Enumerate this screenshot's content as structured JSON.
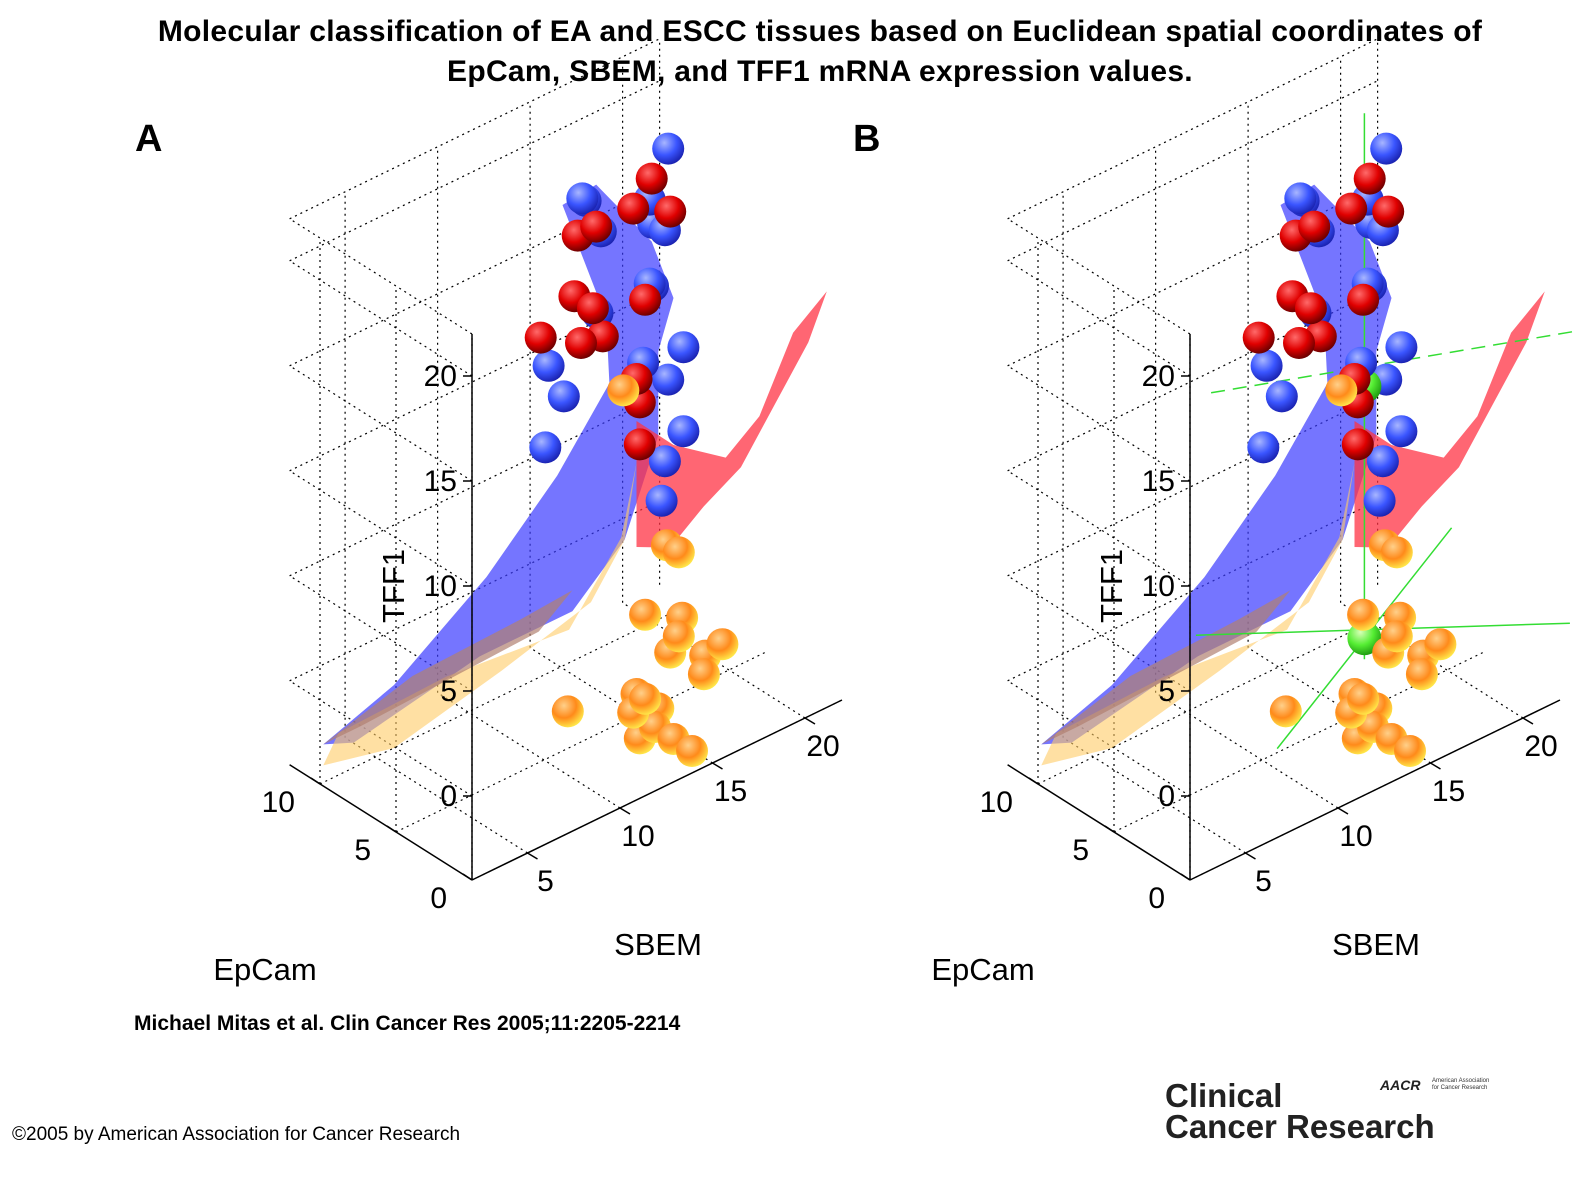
{
  "figure": {
    "title_line1": "Molecular classification of EA and ESCC tissues based on Euclidean spatial coordinates of",
    "title_line2": "EpCam, SBEM, and TFF1 mRNA expression values.",
    "citation": "Michael Mitas et al. Clin Cancer Res 2005;11:2205-2214",
    "copyright": "©2005 by American Association for Cancer Research",
    "journal_line1": "Clinical",
    "journal_line2": "Cancer Research",
    "publisher_mark": "AACR",
    "publisher_sub_line1": "American Association",
    "publisher_sub_line2": "for Cancer Research"
  },
  "colors": {
    "blue_sphere": "#2a44ff",
    "red_sphere": "#d40000",
    "orange_sphere": "#ffa500",
    "green_sphere": "#55ee33",
    "blue_surface": "#3b3bff",
    "red_surface": "#ff3344",
    "orange_surface": "#ffcc66"
  },
  "chart_data": [
    {
      "panel": "A",
      "type": "scatter3d",
      "xlabel": "EpCam",
      "ylabel": "SBEM",
      "zlabel": "TFF1",
      "x_ticks": [
        "0",
        "5",
        "10"
      ],
      "y_ticks": [
        "5",
        "10",
        "15",
        "20"
      ],
      "z_ticks": [
        "0",
        "5",
        "10",
        "15",
        "20"
      ],
      "xlim": [
        0,
        12
      ],
      "ylim": [
        2,
        22
      ],
      "zlim": [
        -4,
        22
      ],
      "grid": true,
      "series": [
        {
          "color": "blue",
          "points": [
            [
              9,
              20,
              19
            ],
            [
              9,
              19,
              17
            ],
            [
              10,
              20,
              15
            ],
            [
              9,
              19,
              13
            ],
            [
              10,
              20,
              12
            ],
            [
              8,
              19,
              16
            ],
            [
              11,
              18,
              15
            ],
            [
              11,
              17,
              17
            ],
            [
              12,
              18,
              16
            ],
            [
              8,
              20,
              10
            ],
            [
              10,
              17,
              12
            ],
            [
              11,
              16,
              8
            ],
            [
              8,
              19,
              5
            ],
            [
              7,
              18,
              4
            ],
            [
              8,
              20,
              6
            ],
            [
              7,
              17,
              11
            ],
            [
              11,
              15,
              6
            ],
            [
              12,
              16,
              9
            ],
            [
              9,
              20,
              8
            ]
          ]
        },
        {
          "color": "red",
          "points": [
            [
              4,
              15,
              22
            ],
            [
              4,
              14,
              21
            ],
            [
              4,
              16,
              20
            ],
            [
              4,
              12,
              21
            ],
            [
              4,
              11,
              21
            ],
            [
              3,
              10,
              19
            ],
            [
              3,
              11,
              18
            ],
            [
              2,
              13,
              18
            ],
            [
              5,
              12,
              15
            ],
            [
              6,
              14,
              14
            ],
            [
              6,
              16,
              10
            ],
            [
              6,
              16,
              8
            ],
            [
              4,
              9,
              17
            ],
            [
              5,
              15,
              12
            ]
          ]
        },
        {
          "color": "orange",
          "points": [
            [
              1,
              11,
              15
            ],
            [
              1,
              14,
              6
            ],
            [
              3,
              15,
              5
            ],
            [
              2,
              13,
              3
            ],
            [
              1,
              14,
              2
            ],
            [
              2,
              15,
              2
            ],
            [
              1,
              8,
              1
            ],
            [
              4,
              16,
              -1
            ],
            [
              3,
              18,
              -1
            ],
            [
              3,
              17,
              -2
            ],
            [
              5,
              15,
              -3
            ],
            [
              4,
              14,
              -3
            ],
            [
              5,
              16,
              -5
            ],
            [
              6,
              17,
              -5
            ],
            [
              5,
              17,
              -6
            ],
            [
              6,
              16,
              -6
            ],
            [
              5,
              18,
              -7
            ],
            [
              9,
              22,
              -6
            ],
            [
              2,
              13,
              -1
            ]
          ]
        }
      ]
    },
    {
      "panel": "B",
      "type": "scatter3d",
      "xlabel": "EpCam",
      "ylabel": "SBEM",
      "zlabel": "TFF1",
      "x_ticks": [
        "0",
        "5",
        "10"
      ],
      "y_ticks": [
        "5",
        "10",
        "15",
        "20"
      ],
      "z_ticks": [
        "0",
        "5",
        "10",
        "15",
        "20"
      ],
      "xlim": [
        0,
        12
      ],
      "ylim": [
        2,
        22
      ],
      "zlim": [
        -4,
        22
      ],
      "grid": true,
      "series": [
        {
          "color": "blue",
          "points": [
            [
              9,
              20,
              19
            ],
            [
              9,
              19,
              17
            ],
            [
              10,
              20,
              15
            ],
            [
              9,
              19,
              13
            ],
            [
              10,
              20,
              12
            ],
            [
              8,
              19,
              16
            ],
            [
              11,
              18,
              15
            ],
            [
              11,
              17,
              17
            ],
            [
              12,
              18,
              16
            ],
            [
              8,
              20,
              10
            ],
            [
              10,
              17,
              12
            ],
            [
              11,
              16,
              8
            ],
            [
              8,
              19,
              5
            ],
            [
              7,
              18,
              4
            ],
            [
              8,
              20,
              6
            ],
            [
              7,
              17,
              11
            ],
            [
              11,
              15,
              6
            ],
            [
              12,
              16,
              9
            ],
            [
              9,
              20,
              8
            ]
          ]
        },
        {
          "color": "red",
          "points": [
            [
              4,
              15,
              22
            ],
            [
              4,
              14,
              21
            ],
            [
              4,
              16,
              20
            ],
            [
              4,
              12,
              21
            ],
            [
              4,
              11,
              21
            ],
            [
              3,
              10,
              19
            ],
            [
              3,
              11,
              18
            ],
            [
              2,
              13,
              18
            ],
            [
              5,
              12,
              15
            ],
            [
              6,
              14,
              14
            ],
            [
              6,
              16,
              10
            ],
            [
              6,
              16,
              8
            ],
            [
              4,
              9,
              17
            ],
            [
              5,
              15,
              12
            ]
          ]
        },
        {
          "color": "orange",
          "points": [
            [
              1,
              11,
              15
            ],
            [
              1,
              14,
              6
            ],
            [
              3,
              15,
              5
            ],
            [
              2,
              13,
              3
            ],
            [
              1,
              14,
              2
            ],
            [
              2,
              15,
              2
            ],
            [
              1,
              8,
              1
            ],
            [
              4,
              16,
              -1
            ],
            [
              3,
              18,
              -1
            ],
            [
              3,
              17,
              -2
            ],
            [
              5,
              15,
              -3
            ],
            [
              4,
              14,
              -3
            ],
            [
              5,
              16,
              -5
            ],
            [
              6,
              17,
              -5
            ],
            [
              5,
              17,
              -6
            ],
            [
              6,
              16,
              -6
            ],
            [
              5,
              18,
              -7
            ],
            [
              9,
              22,
              -6
            ],
            [
              2,
              13,
              -1
            ]
          ]
        },
        {
          "color": "green",
          "points": [
            [
              8,
              18,
              9
            ],
            [
              8,
              18,
              -3
            ]
          ]
        }
      ]
    }
  ]
}
